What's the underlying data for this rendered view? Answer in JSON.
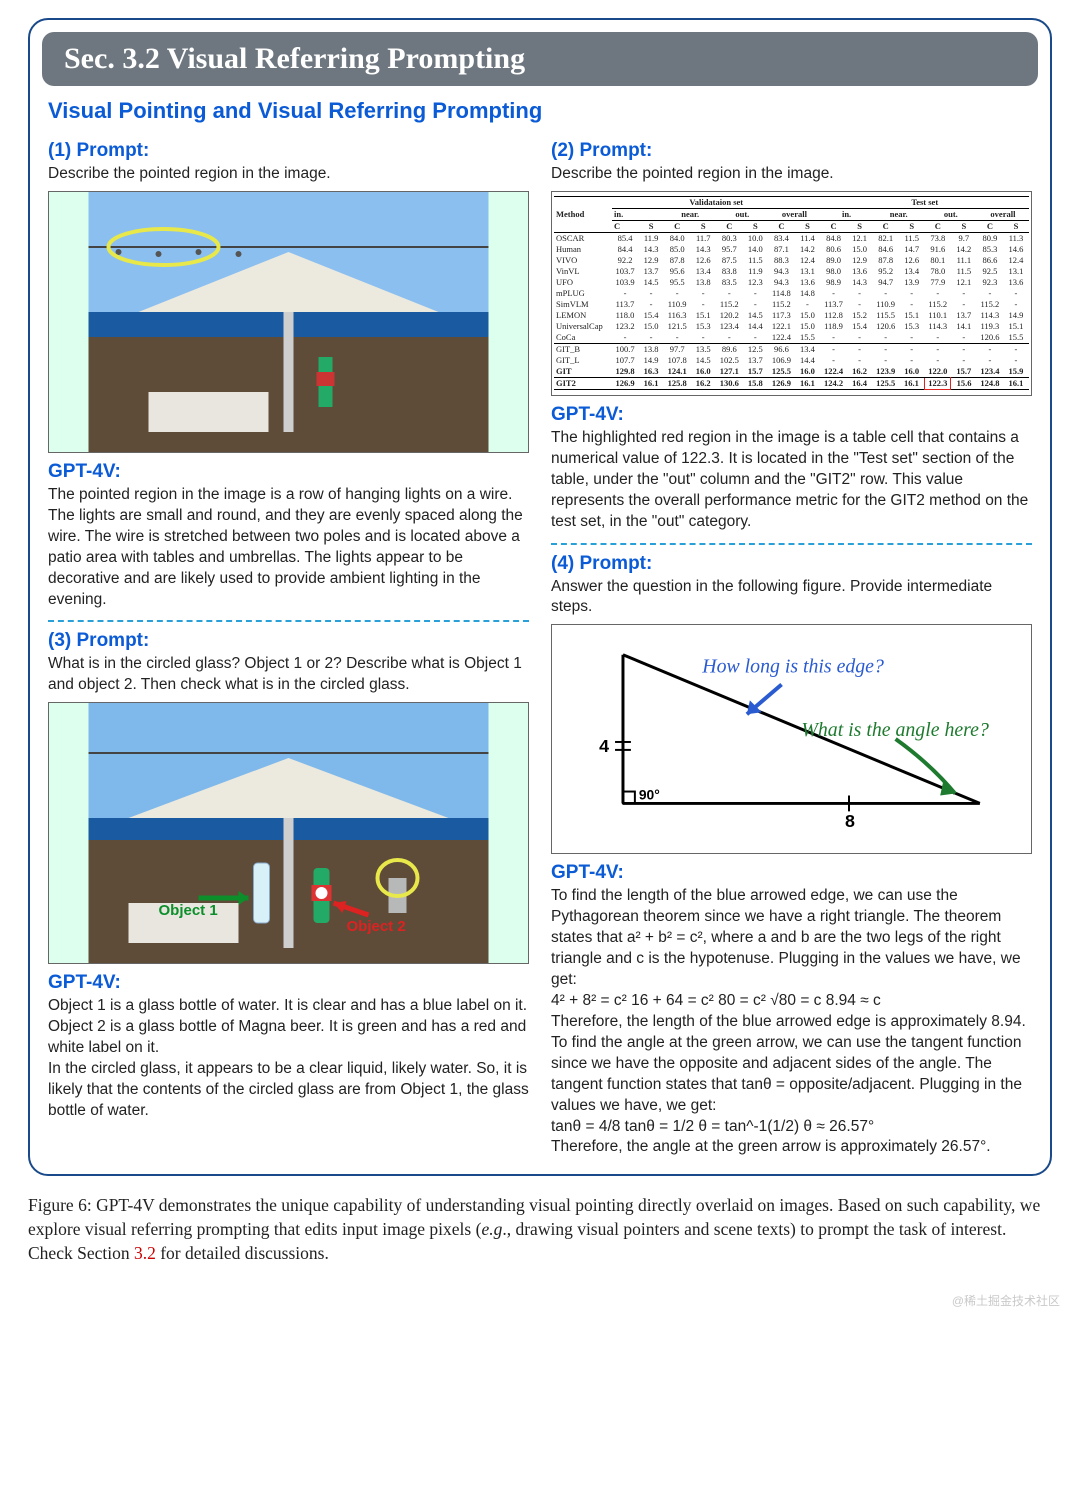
{
  "banner": "Sec. 3.2 Visual Referring Prompting",
  "subtitle": "Visual Pointing and Visual Referring Prompting",
  "colors": {
    "accent": "#0b5bd6",
    "banner_bg": "#6e7780",
    "border": "#1a4a8a",
    "dash": "#2aa0d8",
    "red": "#c00",
    "green_arrow": "#0c8f2a",
    "blue_arrow": "#2a5bd0"
  },
  "p1": {
    "heading": "(1) Prompt:",
    "text": "Describe the pointed region in the image.",
    "gpt_h": "GPT-4V:",
    "resp": "The pointed region in the image is a row of hanging lights on a wire. The lights are small and round, and they are evenly spaced along the wire. The wire is stretched between two poles and is located above a patio area with tables and umbrellas. The lights appear to be decorative and are likely used to provide ambient lighting in the evening.",
    "photo": {
      "sky": "#8abff0",
      "deck": "#6a5540",
      "umbrella": "#e8e8e0",
      "circle": "#e8e84a",
      "highlight_label": "yellow-circle-annotation"
    }
  },
  "p2": {
    "heading": "(2) Prompt:",
    "text": "Describe the pointed region in the image.",
    "gpt_h": "GPT-4V:",
    "resp": "The highlighted red region in the image is a table cell that contains a numerical value of 122.3. It is located in the \"Test set\" section of the table, under the \"out\" column and the \"GIT2\" row. This value represents the overall performance metric for the GIT2 method on the test set, in the \"out\" category.",
    "table": {
      "top_headers": [
        "Validataion set",
        "Test set"
      ],
      "sub_headers": [
        "in.",
        "near.",
        "out.",
        "overall",
        "in.",
        "near.",
        "out.",
        "overall"
      ],
      "cs_header": "C",
      "s_header": "S",
      "method_header": "Method",
      "rows": [
        {
          "m": "OSCAR",
          "v": [
            "85.4",
            "11.9",
            "84.0",
            "11.7",
            "80.3",
            "10.0",
            "83.4",
            "11.4",
            "84.8",
            "12.1",
            "82.1",
            "11.5",
            "73.8",
            "9.7",
            "80.9",
            "11.3"
          ]
        },
        {
          "m": "Human",
          "v": [
            "84.4",
            "14.3",
            "85.0",
            "14.3",
            "95.7",
            "14.0",
            "87.1",
            "14.2",
            "80.6",
            "15.0",
            "84.6",
            "14.7",
            "91.6",
            "14.2",
            "85.3",
            "14.6"
          ]
        },
        {
          "m": "VIVO",
          "v": [
            "92.2",
            "12.9",
            "87.8",
            "12.6",
            "87.5",
            "11.5",
            "88.3",
            "12.4",
            "89.0",
            "12.9",
            "87.8",
            "12.6",
            "80.1",
            "11.1",
            "86.6",
            "12.4"
          ]
        },
        {
          "m": "VinVL",
          "v": [
            "103.7",
            "13.7",
            "95.6",
            "13.4",
            "83.8",
            "11.9",
            "94.3",
            "13.1",
            "98.0",
            "13.6",
            "95.2",
            "13.4",
            "78.0",
            "11.5",
            "92.5",
            "13.1"
          ]
        },
        {
          "m": "UFO",
          "v": [
            "103.9",
            "14.5",
            "95.5",
            "13.8",
            "83.5",
            "12.3",
            "94.3",
            "13.6",
            "98.9",
            "14.3",
            "94.7",
            "13.9",
            "77.9",
            "12.1",
            "92.3",
            "13.6"
          ]
        },
        {
          "m": "mPLUG",
          "v": [
            "-",
            "-",
            "-",
            "-",
            "-",
            "-",
            "114.8",
            "14.8",
            "-",
            "-",
            "-",
            "-",
            "-",
            "-",
            "-",
            "-"
          ]
        },
        {
          "m": "SimVLM",
          "v": [
            "113.7",
            "-",
            "110.9",
            "-",
            "115.2",
            "-",
            "115.2",
            "-",
            "113.7",
            "-",
            "110.9",
            "-",
            "115.2",
            "-",
            "115.2",
            "-"
          ]
        },
        {
          "m": "LEMON",
          "v": [
            "118.0",
            "15.4",
            "116.3",
            "15.1",
            "120.2",
            "14.5",
            "117.3",
            "15.0",
            "112.8",
            "15.2",
            "115.5",
            "15.1",
            "110.1",
            "13.7",
            "114.3",
            "14.9"
          ]
        },
        {
          "m": "UniversalCap",
          "v": [
            "123.2",
            "15.0",
            "121.5",
            "15.3",
            "123.4",
            "14.4",
            "122.1",
            "15.0",
            "118.9",
            "15.4",
            "120.6",
            "15.3",
            "114.3",
            "14.1",
            "119.3",
            "15.1"
          ]
        },
        {
          "m": "CoCa",
          "v": [
            "-",
            "-",
            "-",
            "-",
            "-",
            "-",
            "122.4",
            "15.5",
            "-",
            "-",
            "-",
            "-",
            "-",
            "-",
            "120.6",
            "15.5"
          ]
        },
        {
          "m": "GIT_B",
          "v": [
            "100.7",
            "13.8",
            "97.7",
            "13.5",
            "89.6",
            "12.5",
            "96.6",
            "13.4",
            "-",
            "-",
            "-",
            "-",
            "-",
            "-",
            "-",
            "-"
          ]
        },
        {
          "m": "GIT_L",
          "v": [
            "107.7",
            "14.9",
            "107.8",
            "14.5",
            "102.5",
            "13.7",
            "106.9",
            "14.4",
            "-",
            "-",
            "-",
            "-",
            "-",
            "-",
            "-",
            "-"
          ]
        },
        {
          "m": "GIT",
          "v": [
            "129.8",
            "16.3",
            "124.1",
            "16.0",
            "127.1",
            "15.7",
            "125.5",
            "16.0",
            "122.4",
            "16.2",
            "123.9",
            "16.0",
            "122.0",
            "15.7",
            "123.4",
            "15.9"
          ],
          "bold": true
        },
        {
          "m": "GIT2",
          "v": [
            "126.9",
            "16.1",
            "125.8",
            "16.2",
            "130.6",
            "15.8",
            "126.9",
            "16.1",
            "124.2",
            "16.4",
            "125.5",
            "16.1",
            "122.3",
            "15.6",
            "124.8",
            "16.1"
          ],
          "bold": true,
          "circle_col": 12
        }
      ]
    }
  },
  "p3": {
    "heading": "(3) Prompt:",
    "text": "What is in the circled glass? Object 1 or 2? Describe what is Object 1 and object 2. Then check what is in the circled glass.",
    "gpt_h": "GPT-4V:",
    "resp_lines": [
      "Object 1 is a glass bottle of water. It is clear and has a blue label on it.",
      "Object 2 is a glass bottle of Magna beer. It is green and has a red and white label on it.",
      "In the circled glass, it appears to be a clear liquid, likely water. So, it is likely that the contents of the circled glass are from Object 1, the glass bottle of water."
    ],
    "labels": {
      "o1": "Object 1",
      "o2": "Object 2"
    },
    "photo": {
      "sky": "#8abff0",
      "deck": "#6a5540",
      "bottle1": "#cfe",
      "bottle2": "#2a6",
      "arrow_green": "#0c8f2a",
      "arrow_red": "#d22",
      "circle": "#e8e84a"
    }
  },
  "p4": {
    "heading": "(4) Prompt:",
    "text": "Answer the question in the following figure. Provide intermediate steps.",
    "gpt_h": "GPT-4V:",
    "triangle": {
      "side_a": "4",
      "side_b": "8",
      "angle": "90°",
      "q1": "How long is this edge?",
      "q2": "What is the angle here?",
      "q1_color": "#2a5bd0",
      "q2_color": "#1e7a2e"
    },
    "resp_lines": [
      "To find the length of the blue arrowed edge, we can use the Pythagorean theorem since we have a right triangle. The theorem states that a² + b² = c², where a and b are the two legs of the right triangle and c is the hypotenuse. Plugging in the values we have, we get:",
      "4² + 8² = c²    16 + 64 = c²    80 = c²    √80 = c    8.94 ≈ c",
      "Therefore, the length of the blue arrowed edge is approximately 8.94.",
      "To find the angle at the green arrow, we can use the tangent function since we have the opposite and adjacent sides of the angle. The tangent function states that tanθ = opposite/adjacent. Plugging in the values we have, we get:",
      "tanθ = 4/8    tanθ = 1/2    θ = tan^-1(1/2)    θ ≈ 26.57°",
      "Therefore, the angle at the green arrow is approximately 26.57°."
    ]
  },
  "caption": {
    "prefix": "Figure 6:  ",
    "body1": "GPT-4V demonstrates the unique capability of understanding visual pointing directly overlaid on images. Based on such capability, we explore visual referring prompting that edits input image pixels (",
    "eg": "e.g",
    "body2": "., drawing visual pointers and scene texts) to prompt the task of interest. Check Section ",
    "sec": "3.2",
    "body3": " for detailed discussions."
  },
  "watermark": "@稀土掘金技术社区"
}
